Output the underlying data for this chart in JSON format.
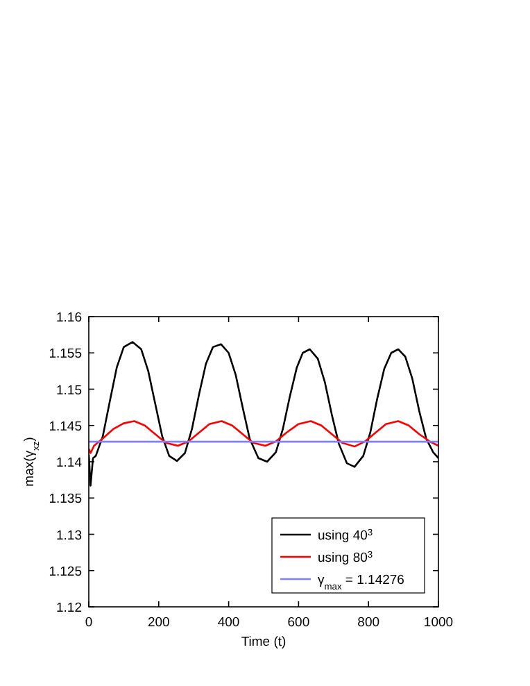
{
  "chart_data": {
    "type": "line",
    "xlabel": "Time (t)",
    "ylabel": "max(γ$_{xz}$)",
    "xlim": [
      0,
      1000
    ],
    "xticks": [
      0,
      200,
      400,
      600,
      800,
      1000
    ],
    "ylim": [
      1.12,
      1.16
    ],
    "yticks": [
      1.12,
      1.125,
      1.13,
      1.135,
      1.14,
      1.145,
      1.15,
      1.155,
      1.16
    ],
    "legend": "bottom right",
    "grid": false,
    "marker": "none",
    "line_style": "solid",
    "series": [
      {
        "name": "using 40$^{3}$",
        "color": "#000000",
        "x": [
          0,
          5,
          12,
          20,
          40,
          60,
          80,
          100,
          125,
          150,
          170,
          190,
          210,
          230,
          252,
          275,
          295,
          315,
          335,
          355,
          378,
          400,
          420,
          440,
          460,
          485,
          510,
          535,
          555,
          575,
          595,
          612,
          632,
          655,
          675,
          695,
          715,
          738,
          760,
          785,
          805,
          825,
          845,
          865,
          885,
          905,
          925,
          945,
          965,
          985,
          1000
        ],
        "values": [
          1.141,
          1.1367,
          1.1405,
          1.1408,
          1.1435,
          1.1483,
          1.153,
          1.1558,
          1.1565,
          1.1555,
          1.1525,
          1.148,
          1.1435,
          1.1408,
          1.1401,
          1.1412,
          1.1445,
          1.1492,
          1.1535,
          1.1558,
          1.1562,
          1.155,
          1.152,
          1.1475,
          1.1432,
          1.1405,
          1.14,
          1.1413,
          1.1445,
          1.149,
          1.153,
          1.155,
          1.1555,
          1.1542,
          1.151,
          1.1465,
          1.1425,
          1.1398,
          1.1393,
          1.1408,
          1.144,
          1.1487,
          1.1528,
          1.155,
          1.1555,
          1.1545,
          1.1515,
          1.147,
          1.1432,
          1.1413,
          1.1405
        ]
      },
      {
        "name": "using 80$^{3}$",
        "color": "#ff0000",
        "x": [
          0,
          5,
          15,
          40,
          70,
          100,
          130,
          160,
          190,
          220,
          255,
          285,
          315,
          345,
          380,
          410,
          440,
          470,
          505,
          535,
          565,
          600,
          635,
          665,
          695,
          725,
          760,
          790,
          820,
          850,
          885,
          915,
          945,
          975,
          1000
        ],
        "values": [
          1.1418,
          1.1412,
          1.1422,
          1.1432,
          1.1445,
          1.1453,
          1.1456,
          1.145,
          1.1438,
          1.1426,
          1.1422,
          1.1428,
          1.144,
          1.1452,
          1.1456,
          1.145,
          1.1438,
          1.1426,
          1.1422,
          1.1428,
          1.144,
          1.1452,
          1.1456,
          1.145,
          1.1438,
          1.1426,
          1.1421,
          1.1428,
          1.144,
          1.1452,
          1.1456,
          1.145,
          1.1438,
          1.1428,
          1.1422
        ]
      },
      {
        "name": "γ$_{max}$ = 1.14276",
        "color": "#8080ff",
        "x": [
          0,
          1000
        ],
        "values": [
          1.14276,
          1.14276
        ]
      }
    ]
  }
}
